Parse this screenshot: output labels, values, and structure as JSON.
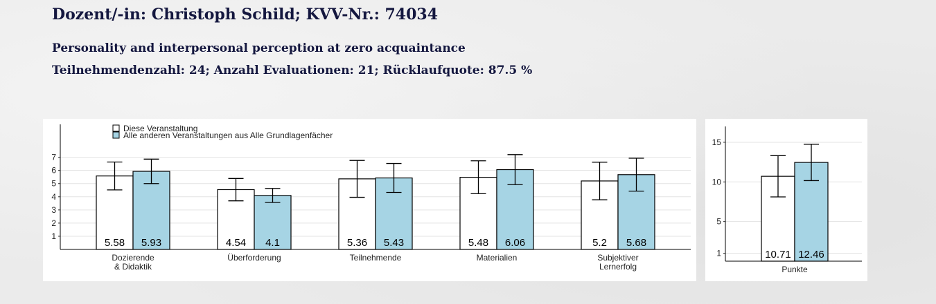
{
  "header": {
    "title": "Dozent/-in: Christoph Schild; KVV-Nr.: 74034",
    "course": "Personality and interpersonal perception at zero acquaintance",
    "stats": "Teilnehmendenzahl: 24; Anzahl Evaluationen: 21; Rücklaufquote: 87.5 %"
  },
  "chart_data": [
    {
      "type": "bar",
      "categories": [
        "Dozierende\n& Didaktik",
        "Überforderung",
        "Teilnehmende",
        "Materialien",
        "Subjektiver\nLernerfolg"
      ],
      "series": [
        {
          "name": "Diese Veranstaltung",
          "color": "#ffffff",
          "values": [
            5.58,
            4.54,
            5.36,
            5.48,
            5.2
          ],
          "errors": [
            1.06,
            0.85,
            1.4,
            1.25,
            1.43
          ]
        },
        {
          "name": "Alle anderen Veranstaltungen aus Alle Grundlagenfächer",
          "color": "#a6d4e4",
          "values": [
            5.93,
            4.1,
            5.43,
            6.06,
            5.68
          ],
          "errors": [
            0.93,
            0.53,
            1.1,
            1.14,
            1.25
          ]
        }
      ],
      "ylim": [
        0,
        9.5
      ],
      "yticks": [
        1,
        2,
        3,
        4,
        5,
        6,
        7
      ],
      "grid": true,
      "legend": "top-left"
    },
    {
      "type": "bar",
      "categories": [
        "Punkte"
      ],
      "series": [
        {
          "color": "#ffffff",
          "values": [
            10.71
          ],
          "errors": [
            2.6
          ]
        },
        {
          "color": "#a6d4e4",
          "values": [
            12.46
          ],
          "errors": [
            2.3
          ]
        }
      ],
      "ylim": [
        0,
        17
      ],
      "yticks": [
        1,
        5,
        10,
        15
      ],
      "grid": true
    }
  ]
}
